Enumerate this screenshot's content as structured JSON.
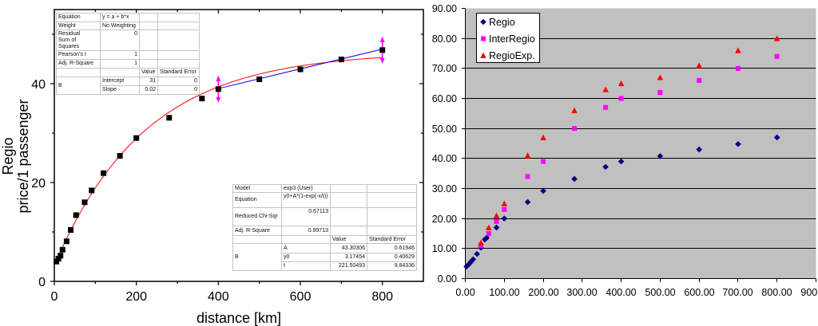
{
  "chart_data": [
    {
      "type": "scatter",
      "xlabel": "distance [km]",
      "ylabel": [
        "Regio",
        "price/1 passenger"
      ],
      "xlim": [
        0,
        900
      ],
      "ylim": [
        0,
        55
      ],
      "xticks": [
        0,
        200,
        400,
        600,
        800
      ],
      "xminor": [
        100,
        300,
        500,
        700
      ],
      "yticks": [
        0,
        20,
        40
      ],
      "yminor": [
        10,
        30,
        50
      ],
      "grid": false,
      "series": [
        {
          "name": "Regio",
          "marker": "square",
          "color": "#000000",
          "x": [
            5,
            10,
            15,
            20,
            30,
            40,
            53,
            74,
            91,
            120,
            160,
            200,
            280,
            360,
            400,
            500,
            600,
            700,
            800
          ],
          "y": [
            4.0,
            4.6,
            5.2,
            6.4,
            8.1,
            10.4,
            13.4,
            16.0,
            18.4,
            21.9,
            25.4,
            29.0,
            33.1,
            37.0,
            38.9,
            40.9,
            42.9,
            44.9,
            46.8
          ]
        }
      ],
      "fits": [
        {
          "model": "y0+A*(1-exp(-x/t))",
          "A": 43.30306,
          "y0": 3.17454,
          "t": 221.50493,
          "x_range": [
            5,
            800
          ],
          "color": "#ff0000"
        },
        {
          "model": "y = a + b*x",
          "a": 31,
          "b": 0.02,
          "x_range": [
            400,
            800
          ],
          "color": "#0000ff"
        }
      ],
      "range_markers_x": [
        400,
        800
      ],
      "range_marker_color": "#ff00ff",
      "linear_fit_table": {
        "rows": [
          {
            "label": "Equation",
            "value": "y = a + b*x"
          },
          {
            "label": "Weight",
            "value": "No Weighting"
          },
          {
            "label": "Residual Sum of Squares",
            "value": "0"
          },
          {
            "label": "Pearson's r",
            "value": "1"
          },
          {
            "label": "Adj. R-Square",
            "value": "1"
          }
        ],
        "col_value": "Value",
        "col_error": "Standard Error",
        "group": "B",
        "params": [
          {
            "name": "Intercept",
            "value": "31",
            "error": "0"
          },
          {
            "name": "Slope",
            "value": "0.02",
            "error": "0"
          }
        ]
      },
      "exp_fit_table": {
        "rows": [
          {
            "label": "Model",
            "value": "exp3 (User)"
          },
          {
            "label": "Equation",
            "value": "y0+A*(1-exp(-x/t))"
          },
          {
            "label": "Reduced Chi-Sqr",
            "value": "0.67113"
          },
          {
            "label": "Adj. R-Square",
            "value": "0.99713"
          }
        ],
        "col_value": "Value",
        "col_error": "Standard Error",
        "group": "B",
        "params": [
          {
            "name": "A",
            "value": "43.30306",
            "error": "0.61946"
          },
          {
            "name": "y0",
            "value": "3.17454",
            "error": "0.40629"
          },
          {
            "name": "t",
            "value": "221.50493",
            "error": "9.84336"
          }
        ]
      }
    },
    {
      "type": "scatter",
      "xlim": [
        0,
        900
      ],
      "ylim": [
        0,
        90
      ],
      "xticks": [
        0,
        100,
        200,
        300,
        400,
        500,
        600,
        700,
        800,
        900
      ],
      "xtick_labels": [
        "0.00",
        "100.00",
        "200.00",
        "300.00",
        "400.00",
        "500.00",
        "600.00",
        "700.00",
        "800.00",
        "900.00"
      ],
      "yticks": [
        0,
        10,
        20,
        30,
        40,
        50,
        60,
        70,
        80,
        90
      ],
      "ytick_labels": [
        "0.00",
        "10.00",
        "20.00",
        "30.00",
        "40.00",
        "50.00",
        "60.00",
        "70.00",
        "80.00",
        "90.00"
      ],
      "grid": true,
      "plot_bg": "#c0c0c0",
      "legend": {
        "position": "top-left"
      },
      "series": [
        {
          "name": "Regio",
          "marker": "diamond",
          "color": "#000080",
          "x": [
            3,
            8,
            12,
            16,
            20,
            30,
            40,
            50,
            55,
            80,
            100,
            160,
            200,
            280,
            360,
            400,
            500,
            600,
            700,
            800
          ],
          "y": [
            4.0,
            4.6,
            5.2,
            5.8,
            6.4,
            8.2,
            10.3,
            13.0,
            13.6,
            17.0,
            20.0,
            25.5,
            29.2,
            33.2,
            37.2,
            39.0,
            40.8,
            43.0,
            44.8,
            47.0
          ]
        },
        {
          "name": "InterRegio",
          "marker": "square",
          "color": "#ff00ff",
          "x": [
            40,
            60,
            80,
            100,
            160,
            200,
            280,
            360,
            400,
            500,
            600,
            700,
            800
          ],
          "y": [
            11,
            15,
            19,
            23,
            34,
            39,
            50,
            57,
            60,
            62,
            66,
            70,
            74
          ]
        },
        {
          "name": "RegioExp.",
          "marker": "triangle",
          "color": "#ff0000",
          "x": [
            40,
            60,
            80,
            100,
            160,
            200,
            280,
            360,
            400,
            500,
            600,
            700,
            800
          ],
          "y": [
            12,
            17,
            21,
            25,
            41,
            47,
            56,
            63,
            65,
            67,
            71,
            76,
            80
          ]
        }
      ]
    }
  ]
}
